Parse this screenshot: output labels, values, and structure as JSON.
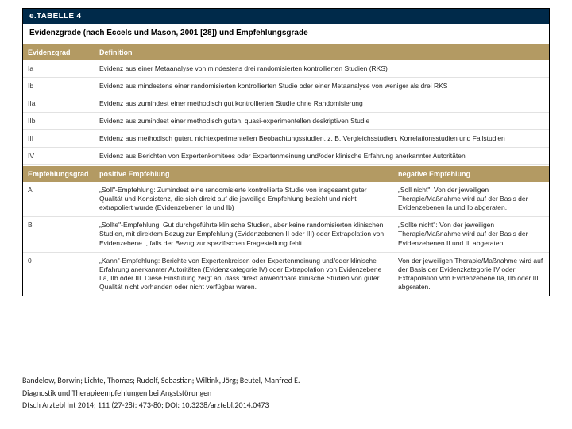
{
  "colors": {
    "titlebarBg": "#002a4a",
    "headerBg": "#b39a63",
    "rowBorder": "#e2e2e2"
  },
  "titlebar": "e.TABELLE 4",
  "caption": "Evidenzgrade (nach Eccels und Mason, 2001 [28]) und Empfehlungsgrade",
  "evidenceHeader": {
    "a": "Evidenzgrad",
    "b": "Definition"
  },
  "evidenceRows": [
    {
      "a": "Ia",
      "b": "Evidenz aus einer Metaanalyse von mindestens drei randomisierten kontrollierten Studien (RKS)"
    },
    {
      "a": "Ib",
      "b": "Evidenz aus mindestens einer randomisierten kontrollierten Studie oder einer Metaanalyse von weniger als drei RKS"
    },
    {
      "a": "IIa",
      "b": "Evidenz aus zumindest einer methodisch gut kontrollierten Studie ohne Randomisierung"
    },
    {
      "a": "IIb",
      "b": "Evidenz aus zumindest einer methodisch guten, quasi-experimentellen deskriptiven Studie"
    },
    {
      "a": "III",
      "b": "Evidenz aus methodisch guten, nichtexperimentellen Beobachtungsstudien, z. B. Vergleichsstudien, Korrelationsstudien und Fallstudien"
    },
    {
      "a": "IV",
      "b": "Evidenz aus Berichten von Expertenkomitees oder Expertenmeinung und/oder klinische Erfahrung anerkannter Autoritäten"
    }
  ],
  "recHeader": {
    "a": "Empfehlungsgrad",
    "b": "positive Empfehlung",
    "c": "negative Empfehlung"
  },
  "recRows": [
    {
      "a": "A",
      "b": "„Soll\"-Empfehlung: Zumindest eine randomisierte kontrollierte Studie von insgesamt guter Qualität und Konsistenz, die sich direkt auf die jeweilige Empfehlung bezieht und nicht extrapoliert wurde (Evidenzebenen Ia und Ib)",
      "c": "„Soll nicht\": Von der jeweiligen Therapie/Maßnahme wird auf der Basis der Evidenzebenen Ia und Ib abgeraten."
    },
    {
      "a": "B",
      "b": "„Sollte\"-Empfehlung: Gut durchgeführte klinische Studien, aber keine randomisierten klinischen Studien, mit direktem Bezug zur Empfehlung (Evidenzebenen II oder III) oder Extrapolation von Evidenzebene I, falls der Bezug zur spezifischen Fragestellung fehlt",
      "c": "„Sollte nicht\": Von der jeweiligen Therapie/Maßnahme wird auf der Basis der Evidenzebenen II und III abgeraten."
    },
    {
      "a": "0",
      "b": "„Kann\"-Empfehlung: Berichte von Expertenkreisen oder Expertenmeinung und/oder klinische Erfahrung anerkannter Autoritäten (Evidenzkategorie IV) oder Extrapolation von Evidenzebene IIa, IIb oder III. Diese Einstufung zeigt an, dass direkt anwendbare klinische Studien von guter Qualität nicht vorhanden oder nicht verfügbar waren.",
      "c": "Von der jeweiligen Therapie/Maßnahme wird auf der Basis der Evidenzkategorie IV oder Extrapolation von Evidenzebene IIa, IIb oder III abgeraten."
    }
  ],
  "citation": {
    "line1": "Bandelow, Borwin; Lichte, Thomas; Rudolf, Sebastian; Wiltink, Jörg; Beutel, Manfred E.",
    "line2": "Diagnostik und Therapieempfehlungen bei Angststörungen",
    "line3": "Dtsch Arztebl Int 2014; 111 (27-28): 473-80; DOI: 10.3238/arztebl.2014.0473"
  }
}
